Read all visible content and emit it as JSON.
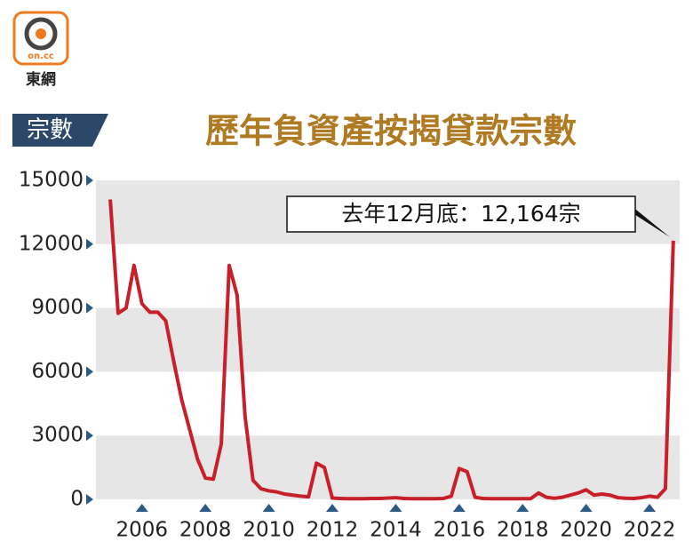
{
  "logo": {
    "brand": "on.cc",
    "name": "東網"
  },
  "chart_data": {
    "type": "line",
    "title": "歷年負資產按揭貸款宗數",
    "y_label": "宗數",
    "annotation": "去年12月底：12,164宗",
    "x": [
      2005,
      2005.25,
      2005.5,
      2005.75,
      2006,
      2006.25,
      2006.5,
      2006.75,
      2007,
      2007.25,
      2007.5,
      2007.75,
      2008,
      2008.25,
      2008.5,
      2008.75,
      2009,
      2009.25,
      2009.5,
      2009.75,
      2010,
      2010.25,
      2010.5,
      2010.75,
      2011,
      2011.25,
      2011.5,
      2011.75,
      2012,
      2012.25,
      2012.5,
      2012.75,
      2013,
      2013.25,
      2013.5,
      2013.75,
      2014,
      2014.25,
      2014.5,
      2014.75,
      2015,
      2015.25,
      2015.5,
      2015.75,
      2016,
      2016.25,
      2016.5,
      2016.75,
      2017,
      2017.25,
      2017.5,
      2017.75,
      2018,
      2018.25,
      2018.5,
      2018.75,
      2019,
      2019.25,
      2019.5,
      2019.75,
      2020,
      2020.25,
      2020.5,
      2020.75,
      2021,
      2021.25,
      2021.5,
      2021.75,
      2022,
      2022.25,
      2022.5,
      2022.75
    ],
    "series": [
      {
        "name": "負資產按揭貸款宗數",
        "color": "#c8202a",
        "values": [
          14100,
          8750,
          9000,
          11000,
          9200,
          8800,
          8800,
          8400,
          6500,
          4700,
          3300,
          1900,
          1000,
          950,
          2600,
          11000,
          9600,
          3900,
          900,
          500,
          400,
          350,
          250,
          200,
          150,
          120,
          1700,
          1500,
          60,
          40,
          30,
          30,
          30,
          40,
          40,
          60,
          80,
          40,
          30,
          30,
          30,
          30,
          40,
          150,
          1450,
          1300,
          100,
          40,
          30,
          30,
          30,
          30,
          30,
          30,
          300,
          100,
          50,
          100,
          200,
          300,
          450,
          200,
          250,
          200,
          80,
          50,
          40,
          80,
          150,
          100,
          500,
          12164
        ]
      }
    ],
    "xlim": [
      2004.55,
      2022.95
    ],
    "xticks": [
      2006,
      2008,
      2010,
      2012,
      2014,
      2016,
      2018,
      2020,
      2022
    ],
    "ylim": [
      0,
      15000
    ],
    "yticks": [
      0,
      3000,
      6000,
      9000,
      12000,
      15000
    ],
    "grid": true
  }
}
